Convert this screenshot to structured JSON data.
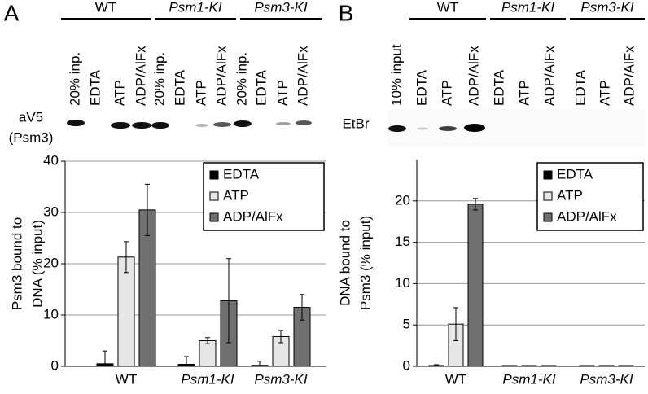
{
  "chart_data": [
    {
      "type": "bar",
      "panel": "A",
      "lane_groups": [
        "WT",
        "Psm1-KI",
        "Psm3-KI"
      ],
      "lanes": [
        "20% inp.",
        "EDTA",
        "ATP",
        "ADP/AlFx",
        "20% inp.",
        "EDTA",
        "ATP",
        "ADP/AlFx",
        "20% inp.",
        "EDTA",
        "ATP",
        "ADP/AlFx"
      ],
      "blot_label": [
        "aV5",
        "(Psm3)"
      ],
      "y_label": [
        "Psm3 bound to",
        "DNA (% input)"
      ],
      "categories": [
        "WT",
        "Psm1-KI",
        "Psm3-KI"
      ],
      "series": [
        {
          "name": "EDTA",
          "color": "#000000",
          "values": [
            0.5,
            0.4,
            0.2
          ],
          "errors": [
            2.5,
            1.5,
            0.8
          ]
        },
        {
          "name": "ATP",
          "color": "#e6e6e6",
          "values": [
            21.3,
            5,
            5.8
          ],
          "errors": [
            3,
            0.6,
            1.2
          ]
        },
        {
          "name": "ADP/AlFx",
          "color": "#707070",
          "values": [
            30.5,
            12.8,
            11.5
          ],
          "errors": [
            5,
            8.2,
            2.5
          ]
        }
      ],
      "ylim": [
        0,
        40
      ],
      "yticks": [
        0,
        10,
        20,
        30,
        40
      ],
      "grid": true
    },
    {
      "type": "bar",
      "panel": "B",
      "lane_groups": [
        "WT",
        "Psm1-KI",
        "Psm3-KI"
      ],
      "lanes": [
        "10% input",
        "EDTA",
        "ATP",
        "ADP/AlFx",
        "EDTA",
        "ATP",
        "ADP/AlFx",
        "EDTA",
        "ATP",
        "ADP/AlFx"
      ],
      "blot_label": [
        "EtBr"
      ],
      "y_label": [
        "DNA bound to",
        "Psm3 (% input)"
      ],
      "categories": [
        "WT",
        "Psm1-KI",
        "Psm3-KI"
      ],
      "series": [
        {
          "name": "EDTA",
          "color": "#000000",
          "values": [
            0.1,
            0.1,
            0.1
          ],
          "errors": [
            0.1,
            0,
            0
          ]
        },
        {
          "name": "ATP",
          "color": "#e6e6e6",
          "values": [
            5.1,
            0.1,
            0.1
          ],
          "errors": [
            2,
            0,
            0
          ]
        },
        {
          "name": "ADP/AlFx",
          "color": "#707070",
          "values": [
            19.6,
            0.1,
            0.1
          ],
          "errors": [
            0.7,
            0,
            0
          ]
        }
      ],
      "ylim": [
        0,
        25
      ],
      "yticks": [
        0,
        5,
        10,
        15,
        20
      ],
      "grid": true
    }
  ]
}
